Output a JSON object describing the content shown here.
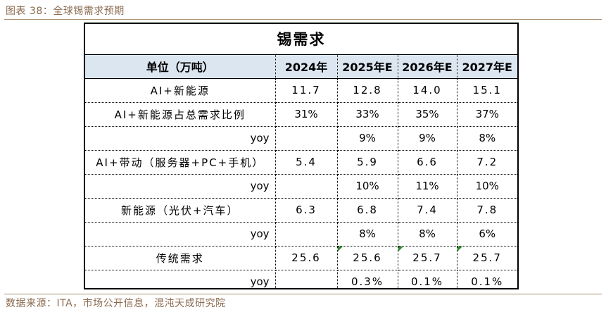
{
  "figure": {
    "caption": "图表 38：全球锡需求预期",
    "source": "数据来源：ITA，市场公开信息，混沌天成研究院"
  },
  "chart_data": {
    "type": "table",
    "title": "锡需求",
    "columns": [
      "单位（万吨）",
      "2024年",
      "2025年E",
      "2026年E",
      "2027年E"
    ],
    "rows": [
      [
        "AI+新能源",
        "11.7",
        "12.8",
        "14.0",
        "15.1"
      ],
      [
        "AI+新能源占总需求比例",
        "31%",
        "33%",
        "35%",
        "37%"
      ],
      [
        "yoy",
        "",
        "9%",
        "9%",
        "8%"
      ],
      [
        "AI+带动（服务器+PC+手机）",
        "5.4",
        "5.9",
        "6.6",
        "7.2"
      ],
      [
        "yoy",
        "",
        "10%",
        "11%",
        "10%"
      ],
      [
        "新能源（光伏+汽车）",
        "6.3",
        "6.8",
        "7.4",
        "7.8"
      ],
      [
        "yoy",
        "",
        "8%",
        "8%",
        "6%"
      ],
      [
        "传统需求",
        "25.6",
        "25.6",
        "25.7",
        "25.7"
      ],
      [
        "yoy",
        "",
        "0.3%",
        "0.1%",
        "0.1%"
      ]
    ],
    "highlight_color": "#dce6f1",
    "flag_color": "#2e8b2e"
  }
}
